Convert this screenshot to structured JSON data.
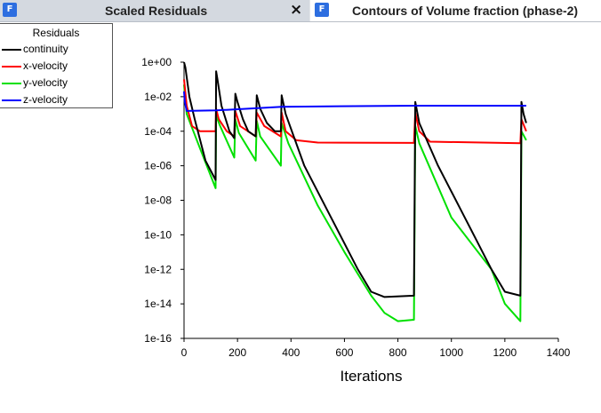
{
  "tabs": [
    {
      "icon": "app-icon",
      "title": "Scaled Residuals",
      "close_symbol": "×"
    },
    {
      "icon": "app-icon",
      "title": "Contours of Volume fraction (phase-2)"
    }
  ],
  "app_icon_letter": "F",
  "colors": {
    "continuity": "#000000",
    "x_velocity": "#ff0000",
    "y_velocity": "#00e000",
    "z_velocity": "#0000ff"
  },
  "chart_data": {
    "type": "line",
    "title": "",
    "xlabel": "Iterations",
    "ylabel": "",
    "yscale": "log",
    "xlim": [
      0,
      1400
    ],
    "ylim": [
      1e-16,
      1
    ],
    "xticks": [
      "0",
      "200",
      "400",
      "600",
      "800",
      "1000",
      "1200",
      "1400"
    ],
    "yticks": [
      "1e-16",
      "1e-14",
      "1e-12",
      "1e-10",
      "1e-08",
      "1e-06",
      "1e-04",
      "1e-02",
      "1e+00"
    ],
    "grid": false,
    "legend": {
      "title": "Residuals",
      "position": "top-left"
    },
    "series": [
      {
        "name": "continuity",
        "color": "#000000",
        "points": [
          [
            0,
            1
          ],
          [
            5,
            0.5
          ],
          [
            20,
            0.01
          ],
          [
            40,
            0.0005
          ],
          [
            80,
            2e-06
          ],
          [
            118,
            1.5e-07
          ],
          [
            120,
            0.3
          ],
          [
            125,
            0.1
          ],
          [
            140,
            0.003
          ],
          [
            170,
            0.0001
          ],
          [
            188,
            4e-05
          ],
          [
            192,
            0.015
          ],
          [
            200,
            0.005
          ],
          [
            220,
            0.0005
          ],
          [
            240,
            0.0001
          ],
          [
            268,
            5e-05
          ],
          [
            272,
            0.012
          ],
          [
            285,
            0.002
          ],
          [
            310,
            0.0003
          ],
          [
            340,
            0.0001
          ],
          [
            362,
            0.0001
          ],
          [
            365,
            0.012
          ],
          [
            380,
            0.001
          ],
          [
            450,
            1e-06
          ],
          [
            550,
            1e-09
          ],
          [
            650,
            1e-12
          ],
          [
            700,
            5e-14
          ],
          [
            750,
            2.5e-14
          ],
          [
            860,
            3e-14
          ],
          [
            865,
            0.005
          ],
          [
            880,
            0.0003
          ],
          [
            950,
            1e-06
          ],
          [
            1050,
            1e-09
          ],
          [
            1150,
            1e-12
          ],
          [
            1200,
            5e-14
          ],
          [
            1258,
            3e-14
          ],
          [
            1262,
            0.005
          ],
          [
            1270,
            0.001
          ],
          [
            1280,
            0.0003
          ]
        ]
      },
      {
        "name": "x-velocity",
        "color": "#ff0000",
        "points": [
          [
            0,
            0.1
          ],
          [
            10,
            0.003
          ],
          [
            30,
            0.0002
          ],
          [
            60,
            0.0001
          ],
          [
            118,
            0.0001
          ],
          [
            120,
            0.002
          ],
          [
            130,
            0.0005
          ],
          [
            160,
            0.0001
          ],
          [
            188,
            5e-05
          ],
          [
            192,
            0.0015
          ],
          [
            210,
            0.0002
          ],
          [
            268,
            5e-05
          ],
          [
            272,
            0.0012
          ],
          [
            300,
            0.0002
          ],
          [
            362,
            5e-05
          ],
          [
            365,
            0.0012
          ],
          [
            380,
            0.0001
          ],
          [
            420,
            3e-05
          ],
          [
            500,
            2.2e-05
          ],
          [
            860,
            2.1e-05
          ],
          [
            865,
            0.0012
          ],
          [
            880,
            0.0001
          ],
          [
            920,
            2.5e-05
          ],
          [
            1258,
            2e-05
          ],
          [
            1262,
            0.0005
          ],
          [
            1280,
            0.0001
          ]
        ]
      },
      {
        "name": "y-velocity",
        "color": "#00e000",
        "points": [
          [
            0,
            0.05
          ],
          [
            10,
            0.001
          ],
          [
            60,
            1e-05
          ],
          [
            118,
            5e-08
          ],
          [
            120,
            0.0008
          ],
          [
            135,
            0.0002
          ],
          [
            188,
            3e-06
          ],
          [
            192,
            0.0005
          ],
          [
            205,
            8e-05
          ],
          [
            268,
            2e-06
          ],
          [
            272,
            0.0004
          ],
          [
            285,
            5e-05
          ],
          [
            362,
            1e-06
          ],
          [
            365,
            0.0003
          ],
          [
            390,
            2e-05
          ],
          [
            500,
            5e-09
          ],
          [
            600,
            1e-11
          ],
          [
            700,
            3e-14
          ],
          [
            750,
            3e-15
          ],
          [
            800,
            1e-15
          ],
          [
            860,
            1.2e-15
          ],
          [
            865,
            0.0002
          ],
          [
            880,
            2e-05
          ],
          [
            1000,
            1e-09
          ],
          [
            1150,
            1e-12
          ],
          [
            1200,
            1e-14
          ],
          [
            1258,
            1e-15
          ],
          [
            1262,
            0.0001
          ],
          [
            1280,
            3e-05
          ]
        ]
      },
      {
        "name": "z-velocity",
        "color": "#0000ff",
        "points": [
          [
            0,
            0.02
          ],
          [
            3,
            0.005
          ],
          [
            10,
            0.0015
          ],
          [
            120,
            0.0016
          ],
          [
            365,
            0.0026
          ],
          [
            865,
            0.003
          ],
          [
            1260,
            0.003
          ],
          [
            1280,
            0.003
          ]
        ]
      }
    ]
  }
}
